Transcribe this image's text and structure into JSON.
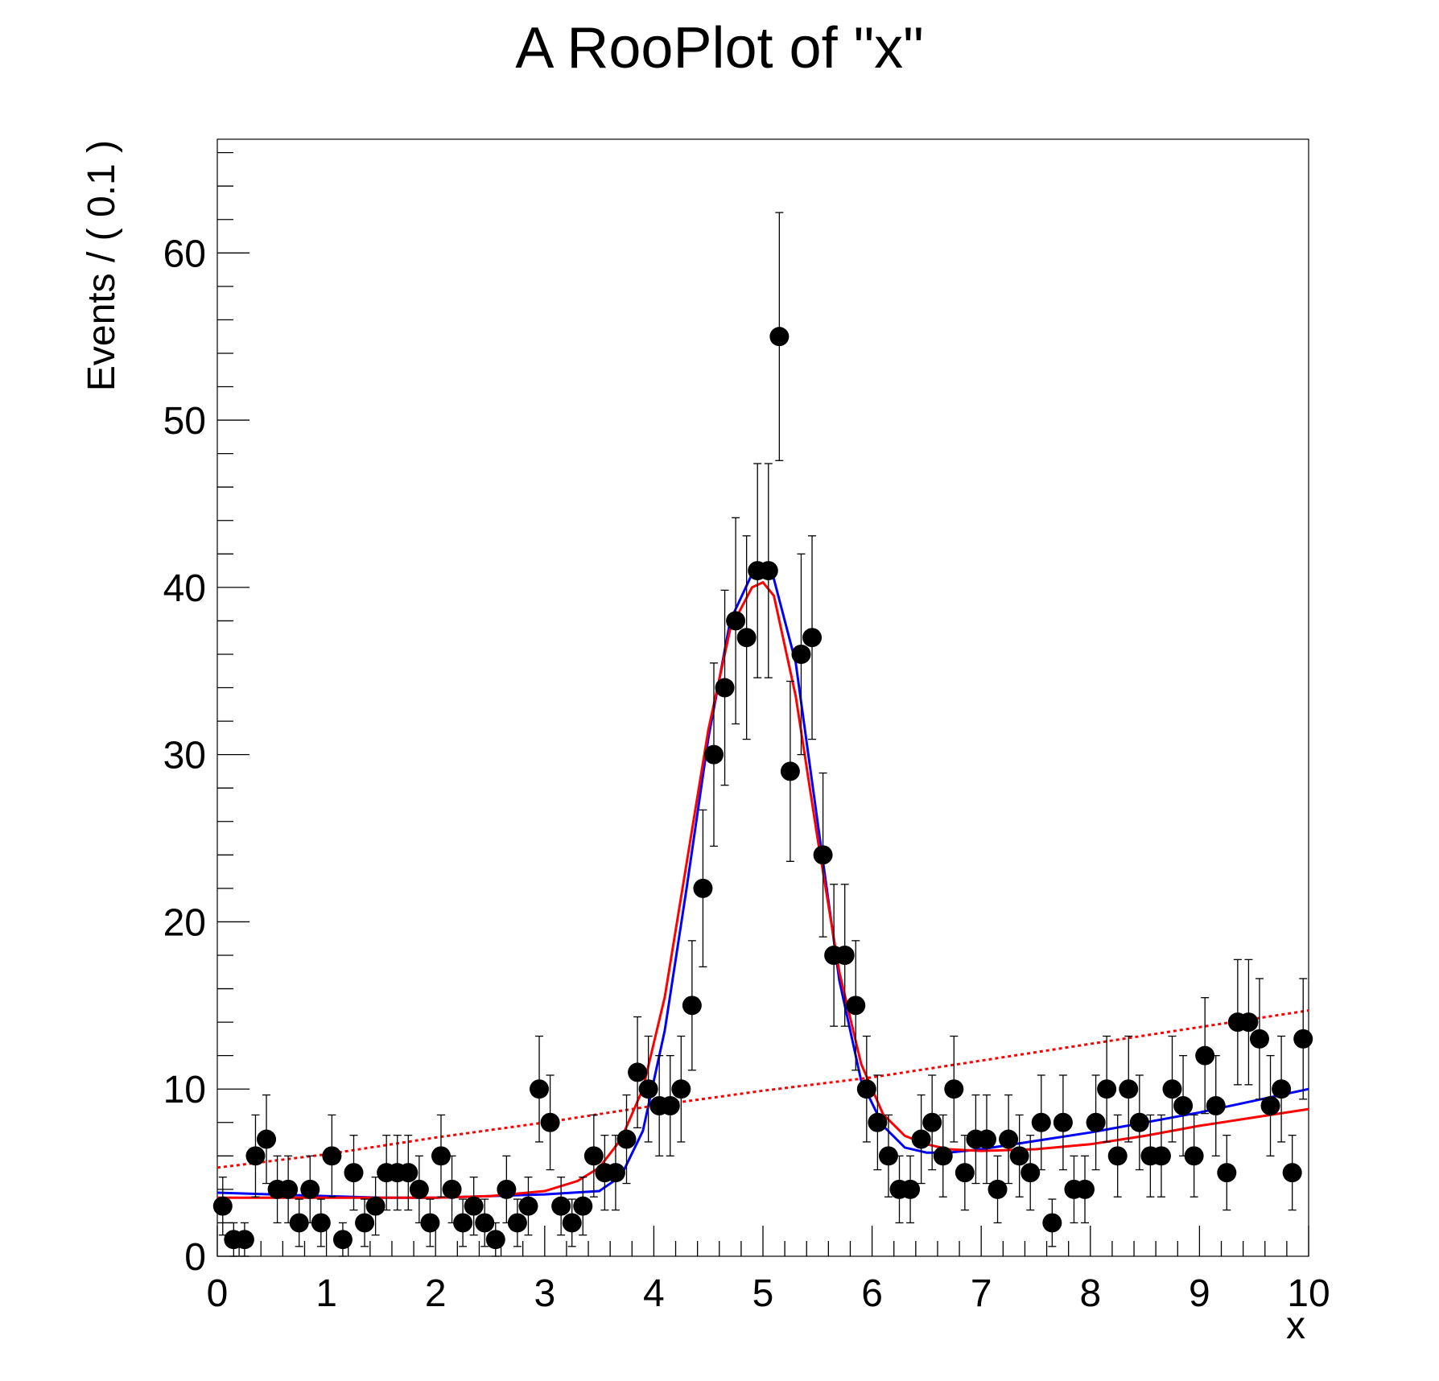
{
  "chart_data": {
    "type": "scatter",
    "title": "A RooPlot of \"x\"",
    "xlabel": "x",
    "ylabel": "Events / ( 0.1 )",
    "xlim": [
      0,
      10
    ],
    "ylim": [
      0,
      66.8
    ],
    "x_ticks": [
      0,
      1,
      2,
      3,
      4,
      5,
      6,
      7,
      8,
      9,
      10
    ],
    "y_ticks": [
      0,
      10,
      20,
      30,
      40,
      50,
      60
    ],
    "x_tick_labels": [
      "0",
      "1",
      "2",
      "3",
      "4",
      "5",
      "6",
      "7",
      "8",
      "9",
      "10"
    ],
    "y_tick_labels": [
      "0",
      "10",
      "20",
      "30",
      "40",
      "50",
      "60"
    ],
    "grid": false,
    "legend": "none",
    "series": [
      {
        "kind": "points-with-errors",
        "color": "#000000",
        "x": [
          0.05,
          0.15,
          0.25,
          0.35,
          0.45,
          0.55,
          0.65,
          0.75,
          0.85,
          0.95,
          1.05,
          1.15,
          1.25,
          1.35,
          1.45,
          1.55,
          1.65,
          1.75,
          1.85,
          1.95,
          2.05,
          2.15,
          2.25,
          2.35,
          2.45,
          2.55,
          2.65,
          2.75,
          2.85,
          2.95,
          3.05,
          3.15,
          3.25,
          3.35,
          3.45,
          3.55,
          3.65,
          3.75,
          3.85,
          3.95,
          4.05,
          4.15,
          4.25,
          4.35,
          4.45,
          4.55,
          4.65,
          4.75,
          4.85,
          4.95,
          5.05,
          5.15,
          5.25,
          5.35,
          5.45,
          5.55,
          5.65,
          5.75,
          5.85,
          5.95,
          6.05,
          6.15,
          6.25,
          6.35,
          6.45,
          6.55,
          6.65,
          6.75,
          6.85,
          6.95,
          7.05,
          7.15,
          7.25,
          7.35,
          7.45,
          7.55,
          7.65,
          7.75,
          7.85,
          7.95,
          8.05,
          8.15,
          8.25,
          8.35,
          8.45,
          8.55,
          8.65,
          8.75,
          8.85,
          8.95,
          9.05,
          9.15,
          9.25,
          9.35,
          9.45,
          9.55,
          9.65,
          9.75,
          9.85,
          9.95
        ],
        "y": [
          3,
          1,
          1,
          6,
          7,
          4,
          4,
          2,
          4,
          2,
          6,
          1,
          5,
          2,
          3,
          5,
          5,
          5,
          4,
          2,
          6,
          4,
          2,
          3,
          2,
          1,
          4,
          2,
          3,
          10,
          8,
          3,
          2,
          3,
          6,
          5,
          5,
          7,
          11,
          10,
          9,
          9,
          10,
          15,
          22,
          30,
          34,
          38,
          37,
          41,
          41,
          55,
          29,
          36,
          37,
          24,
          18,
          18,
          15,
          10,
          8,
          6,
          4,
          4,
          7,
          8,
          6,
          10,
          5,
          7,
          7,
          4,
          7,
          6,
          5,
          8,
          2,
          8,
          4,
          4,
          8,
          10,
          6,
          10,
          8,
          6,
          6,
          10,
          9,
          6,
          12,
          9,
          5,
          14,
          14,
          13,
          9,
          10,
          5,
          13
        ]
      },
      {
        "kind": "curve",
        "color": "#0000ff",
        "style": "solid",
        "x": [
          0,
          0.5,
          1,
          1.5,
          2,
          2.5,
          3,
          3.5,
          3.7,
          3.9,
          4.1,
          4.3,
          4.5,
          4.7,
          4.9,
          5,
          5.1,
          5.3,
          5.5,
          5.7,
          5.9,
          6.1,
          6.3,
          6.5,
          6.7,
          7,
          7.5,
          8,
          8.5,
          9,
          9.5,
          10
        ],
        "y": [
          3.8,
          3.7,
          3.6,
          3.5,
          3.5,
          3.6,
          3.7,
          3.9,
          4.8,
          7.5,
          13.5,
          22,
          31,
          38,
          40.8,
          41,
          40.5,
          35.5,
          26,
          16.5,
          10.5,
          7.8,
          6.5,
          6.2,
          6.2,
          6.4,
          6.9,
          7.4,
          8,
          8.6,
          9.3,
          10
        ]
      },
      {
        "kind": "curve",
        "color": "#ff0000",
        "style": "solid",
        "x": [
          0,
          0.5,
          1,
          1.5,
          2,
          2.5,
          3,
          3.3,
          3.5,
          3.7,
          3.9,
          4.1,
          4.3,
          4.5,
          4.7,
          4.9,
          5,
          5.1,
          5.3,
          5.5,
          5.7,
          5.9,
          6.1,
          6.3,
          6.5,
          6.7,
          7,
          7.5,
          8,
          8.5,
          9,
          9.5,
          10
        ],
        "y": [
          3.5,
          3.5,
          3.5,
          3.5,
          3.5,
          3.6,
          3.9,
          4.5,
          5.3,
          7,
          10,
          15.5,
          23.5,
          31.5,
          37.5,
          40,
          40.3,
          39.5,
          33.5,
          25,
          17,
          11.5,
          8.5,
          7.2,
          6.7,
          6.4,
          6.3,
          6.4,
          6.7,
          7.2,
          7.8,
          8.3,
          8.8
        ]
      },
      {
        "kind": "curve",
        "color": "#ff0000",
        "style": "dotted",
        "x": [
          0,
          1,
          2,
          3,
          4,
          5,
          6,
          7,
          8,
          9,
          10
        ],
        "y": [
          5.3,
          6.1,
          7.1,
          8.0,
          9.0,
          9.9,
          10.7,
          11.7,
          12.7,
          13.7,
          14.7
        ]
      }
    ]
  }
}
